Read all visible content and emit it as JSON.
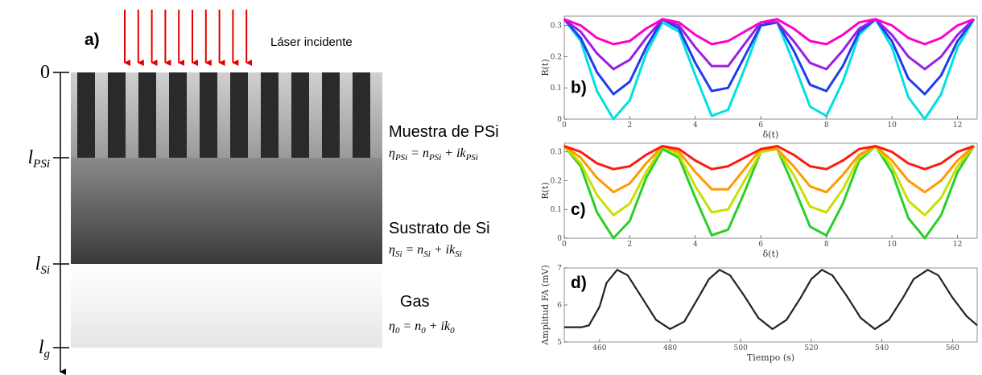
{
  "diagram": {
    "panel_label": "a)",
    "laser_label": "Láser incidente",
    "depth_labels": [
      {
        "text": "0"
      },
      {
        "text": "l",
        "sub": "PSi"
      },
      {
        "text": "l",
        "sub": "Si"
      },
      {
        "text": "l",
        "sub": "g"
      }
    ],
    "layers": [
      {
        "name": "Muestra de PSi",
        "equation": [
          {
            "text": "η",
            "sub": "PSi"
          },
          {
            "text": " =  n",
            "sub": "PSi"
          },
          {
            "text": " + ik",
            "sub": "PSi"
          }
        ]
      },
      {
        "name": "Sustrato de Si",
        "equation": [
          {
            "text": "η",
            "sub": "Si"
          },
          {
            "text": " =  n",
            "sub": "Si"
          },
          {
            "text": " + ik",
            "sub": "Si"
          }
        ]
      },
      {
        "name": "Gas",
        "equation": [
          {
            "text": "η",
            "sub": "0"
          },
          {
            "text": " =  n",
            "sub": "0"
          },
          {
            "text": " + ik",
            "sub": "0"
          }
        ]
      }
    ]
  },
  "chart_data": [
    {
      "type": "line",
      "panel_label": "b)",
      "x_label": "δ(t)",
      "y_label": "R(t)",
      "x": [
        0,
        0.5,
        1,
        1.5,
        2,
        2.5,
        3,
        3.5,
        4,
        4.5,
        5,
        5.5,
        6,
        6.5,
        7,
        7.5,
        8,
        8.5,
        9,
        9.5,
        10,
        10.5,
        11,
        11.5,
        12,
        12.5
      ],
      "series": [
        {
          "color": "#00e0e0",
          "values": [
            0.32,
            0.25,
            0.09,
            0.0,
            0.06,
            0.21,
            0.31,
            0.28,
            0.14,
            0.01,
            0.03,
            0.16,
            0.3,
            0.31,
            0.18,
            0.04,
            0.01,
            0.12,
            0.27,
            0.32,
            0.23,
            0.07,
            0.0,
            0.08,
            0.23,
            0.32
          ]
        },
        {
          "color": "#1f3cf0",
          "values": [
            0.32,
            0.26,
            0.15,
            0.08,
            0.12,
            0.23,
            0.32,
            0.29,
            0.18,
            0.09,
            0.1,
            0.2,
            0.3,
            0.31,
            0.22,
            0.11,
            0.09,
            0.17,
            0.28,
            0.32,
            0.25,
            0.13,
            0.08,
            0.14,
            0.25,
            0.32
          ]
        },
        {
          "color": "#9a1ee6",
          "values": [
            0.32,
            0.28,
            0.21,
            0.16,
            0.19,
            0.26,
            0.32,
            0.3,
            0.23,
            0.17,
            0.17,
            0.24,
            0.31,
            0.31,
            0.25,
            0.18,
            0.16,
            0.22,
            0.29,
            0.32,
            0.27,
            0.2,
            0.16,
            0.2,
            0.27,
            0.32
          ]
        },
        {
          "color": "#ff00c8",
          "values": [
            0.32,
            0.3,
            0.26,
            0.24,
            0.25,
            0.29,
            0.32,
            0.31,
            0.27,
            0.24,
            0.25,
            0.28,
            0.31,
            0.32,
            0.29,
            0.25,
            0.24,
            0.27,
            0.31,
            0.32,
            0.3,
            0.26,
            0.24,
            0.26,
            0.3,
            0.32
          ]
        }
      ],
      "xlim": [
        0,
        12.6
      ],
      "xticks": [
        0,
        2,
        4,
        6,
        8,
        10,
        12
      ],
      "ylim": [
        0,
        0.33
      ],
      "yticks": [
        0,
        0.1,
        0.2,
        0.3
      ]
    },
    {
      "type": "line",
      "panel_label": "c)",
      "x_label": "δ(t)",
      "y_label": "R(t)",
      "x": [
        0,
        0.5,
        1,
        1.5,
        2,
        2.5,
        3,
        3.5,
        4,
        4.5,
        5,
        5.5,
        6,
        6.5,
        7,
        7.5,
        8,
        8.5,
        9,
        9.5,
        10,
        10.5,
        11,
        11.5,
        12,
        12.5
      ],
      "series": [
        {
          "color": "#28d028",
          "values": [
            0.32,
            0.25,
            0.09,
            0.0,
            0.06,
            0.21,
            0.31,
            0.28,
            0.14,
            0.01,
            0.03,
            0.16,
            0.3,
            0.31,
            0.18,
            0.04,
            0.01,
            0.12,
            0.27,
            0.32,
            0.23,
            0.07,
            0.0,
            0.08,
            0.23,
            0.32
          ]
        },
        {
          "color": "#c8e000",
          "values": [
            0.32,
            0.26,
            0.15,
            0.08,
            0.12,
            0.23,
            0.32,
            0.29,
            0.18,
            0.09,
            0.1,
            0.2,
            0.3,
            0.31,
            0.22,
            0.11,
            0.09,
            0.17,
            0.28,
            0.32,
            0.25,
            0.13,
            0.08,
            0.14,
            0.25,
            0.32
          ]
        },
        {
          "color": "#ff9a00",
          "values": [
            0.32,
            0.28,
            0.21,
            0.16,
            0.19,
            0.26,
            0.32,
            0.3,
            0.23,
            0.17,
            0.17,
            0.24,
            0.31,
            0.31,
            0.25,
            0.18,
            0.16,
            0.22,
            0.29,
            0.32,
            0.27,
            0.2,
            0.16,
            0.2,
            0.27,
            0.32
          ]
        },
        {
          "color": "#ff1a10",
          "values": [
            0.32,
            0.3,
            0.26,
            0.24,
            0.25,
            0.29,
            0.32,
            0.31,
            0.27,
            0.24,
            0.25,
            0.28,
            0.31,
            0.32,
            0.29,
            0.25,
            0.24,
            0.27,
            0.31,
            0.32,
            0.3,
            0.26,
            0.24,
            0.26,
            0.3,
            0.32
          ]
        }
      ],
      "xlim": [
        0,
        12.6
      ],
      "xticks": [
        0,
        2,
        4,
        6,
        8,
        10,
        12
      ],
      "ylim": [
        0,
        0.33
      ],
      "yticks": [
        0,
        0.1,
        0.2,
        0.3
      ]
    },
    {
      "type": "line",
      "panel_label": "d)",
      "x_label": "Tiempo (s)",
      "y_label": "Amplitud FA (mV)",
      "x": [
        450,
        455,
        457,
        460,
        462,
        465,
        468,
        472,
        476,
        480,
        484,
        488,
        491,
        494,
        497,
        501,
        505,
        509,
        513,
        517,
        520,
        523,
        526,
        530,
        534,
        538,
        542,
        546,
        549,
        553,
        556,
        560,
        564,
        567
      ],
      "series": [
        {
          "color": "#222222",
          "values": [
            5.4,
            5.4,
            5.45,
            5.95,
            6.6,
            6.95,
            6.8,
            6.2,
            5.6,
            5.35,
            5.55,
            6.2,
            6.7,
            6.95,
            6.8,
            6.25,
            5.65,
            5.35,
            5.6,
            6.2,
            6.7,
            6.95,
            6.8,
            6.25,
            5.65,
            5.35,
            5.6,
            6.2,
            6.7,
            6.95,
            6.8,
            6.2,
            5.7,
            5.45
          ]
        }
      ],
      "xlim": [
        450,
        567
      ],
      "xticks": [
        460,
        480,
        500,
        520,
        540,
        560
      ],
      "ylim": [
        5,
        7
      ],
      "yticks": [
        5,
        6,
        7
      ]
    }
  ]
}
